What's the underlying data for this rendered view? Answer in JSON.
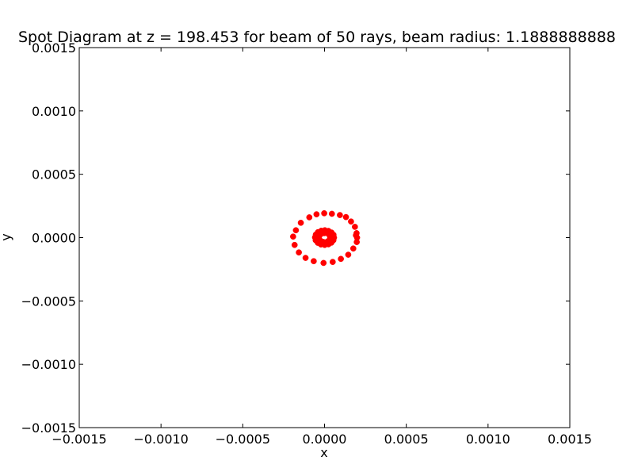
{
  "chart_data": {
    "type": "scatter",
    "title": "Spot Diagram at z = 198.453 for beam of 50 rays, beam radius: 1.1888888888",
    "xlabel": "x",
    "ylabel": "y",
    "xlim": [
      -0.0015,
      0.0015
    ],
    "ylim": [
      -0.0015,
      0.0015
    ],
    "xticks": [
      -0.0015,
      -0.001,
      -0.0005,
      0.0,
      0.0005,
      0.001,
      0.0015
    ],
    "yticks": [
      -0.0015,
      -0.001,
      -0.0005,
      0.0,
      0.0005,
      0.001,
      0.0015
    ],
    "xtick_labels": [
      "−0.0015",
      "−0.0010",
      "−0.0005",
      "0.0000",
      "0.0005",
      "0.0010",
      "0.0015"
    ],
    "ytick_labels": [
      "−0.0015",
      "−0.0010",
      "−0.0005",
      "0.0000",
      "0.0005",
      "0.0010",
      "0.0015"
    ],
    "grid": false,
    "marker_color": "#ff0000",
    "series": [
      {
        "values": [
          [
            0.000199,
            0.0
          ],
          [
            0.000196,
            3.5e-05
          ],
          [
            0.000186,
            8.5e-05
          ],
          [
            0.000162,
            0.000127
          ],
          [
            0.000131,
            0.000162
          ],
          [
            9.4e-05,
            0.000178
          ],
          [
            4.5e-05,
            0.000188
          ],
          [
            -2e-06,
            0.000192
          ],
          [
            -4.9e-05,
            0.000184
          ],
          [
            -9.3e-05,
            0.00016
          ],
          [
            -0.000145,
            0.000117
          ],
          [
            -0.000175,
            5.8e-05
          ],
          [
            -0.000192,
            8e-06
          ],
          [
            -0.000183,
            -5.8e-05
          ],
          [
            -0.000157,
            -0.000117
          ],
          [
            -0.000116,
            -0.00016
          ],
          [
            -6.6e-05,
            -0.000186
          ],
          [
            -6e-06,
            -0.0002
          ],
          [
            5e-05,
            -0.000192
          ],
          [
            0.0001,
            -0.000168
          ],
          [
            0.000145,
            -0.000135
          ],
          [
            0.000176,
            -8.6e-05
          ],
          [
            0.000197,
            -3.5e-05
          ],
          [
            0.000192,
            1.8e-05
          ],
          [
            5.8e-05,
            0.0
          ],
          [
            5.5e-05,
            2.2e-05
          ],
          [
            4.3e-05,
            4e-05
          ],
          [
            2.4e-05,
            5.3e-05
          ],
          [
            2e-06,
            5.8e-05
          ],
          [
            -2e-05,
            5.4e-05
          ],
          [
            -4e-05,
            4.3e-05
          ],
          [
            -5.3e-05,
            2.4e-05
          ],
          [
            -5.8e-05,
            2e-06
          ],
          [
            -5.4e-05,
            -2.1e-05
          ],
          [
            -4.1e-05,
            -4.1e-05
          ],
          [
            -2.2e-05,
            -5.4e-05
          ],
          [
            1e-06,
            -5.8e-05
          ],
          [
            2.4e-05,
            -5.3e-05
          ],
          [
            4.2e-05,
            -4e-05
          ],
          [
            5.4e-05,
            -2.1e-05
          ],
          [
            3.2e-05,
            1.6e-05
          ],
          [
            2.2e-05,
            3e-05
          ],
          [
            -2e-06,
            3.5e-05
          ],
          [
            -2.4e-05,
            2.6e-05
          ],
          [
            -3.4e-05,
            6e-06
          ],
          [
            -2.8e-05,
            -2e-05
          ],
          [
            -8e-06,
            -3.4e-05
          ],
          [
            1.6e-05,
            -3.2e-05
          ],
          [
            3e-05,
            -1.8e-05
          ],
          [
            3.5e-05,
            2e-06
          ]
        ]
      }
    ]
  }
}
